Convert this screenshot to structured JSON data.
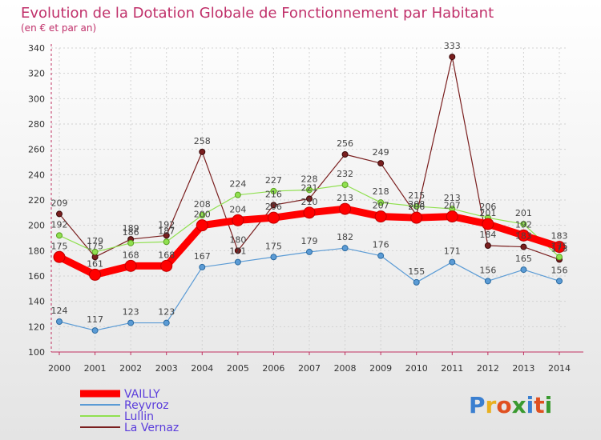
{
  "chart_data": {
    "type": "line",
    "title": "Evolution de la Dotation Globale de Fonctionnement par Habitant",
    "subtitle": "(en € et par an)",
    "x": [
      2000,
      2001,
      2002,
      2003,
      2004,
      2005,
      2006,
      2007,
      2008,
      2009,
      2010,
      2011,
      2012,
      2013,
      2014
    ],
    "ylim": [
      100,
      340
    ],
    "yticks": [
      100,
      120,
      140,
      160,
      180,
      200,
      220,
      240,
      260,
      280,
      300,
      320,
      340
    ],
    "grid": true,
    "legend_position": "bottom-left",
    "series": [
      {
        "name": "VAILLY",
        "color": "#ff0000",
        "values": [
          175,
          161,
          168,
          168,
          200,
          204,
          206,
          210,
          213,
          207,
          206,
          207,
          201,
          192,
          183
        ]
      },
      {
        "name": "Reyvroz",
        "color": "#5b9bd5",
        "values": [
          124,
          117,
          123,
          123,
          167,
          171,
          175,
          179,
          182,
          176,
          155,
          171,
          156,
          165,
          156
        ]
      },
      {
        "name": "Lullin",
        "color": "#90e050",
        "values": [
          192,
          179,
          186,
          187,
          208,
          224,
          227,
          228,
          232,
          218,
          215,
          213,
          206,
          201,
          175
        ]
      },
      {
        "name": "La Vernaz",
        "color": "#7a1f1f",
        "values": [
          209,
          175,
          189,
          192,
          258,
          180,
          216,
          221,
          256,
          249,
          208,
          333,
          184,
          183,
          173
        ]
      }
    ]
  },
  "branding": {
    "logo": "Proxiti"
  }
}
